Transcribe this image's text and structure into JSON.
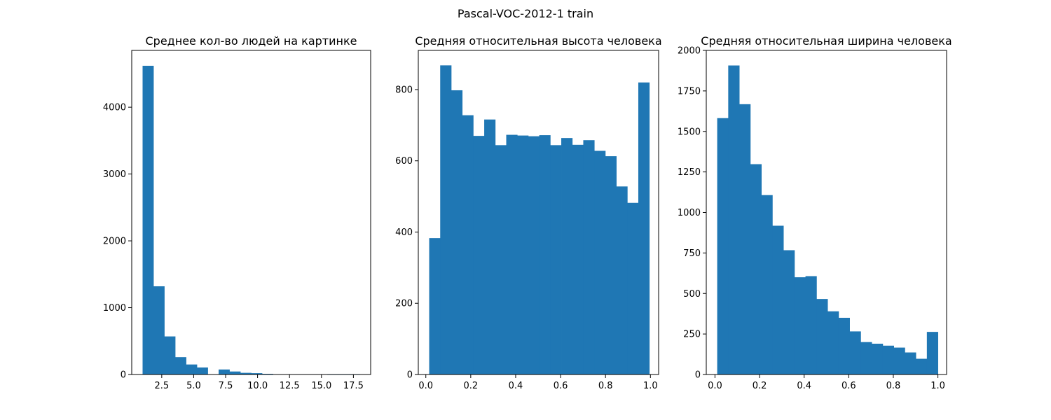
{
  "figure": {
    "suptitle": "Pascal-VOC-2012-1 train"
  },
  "chart_data": [
    {
      "type": "bar",
      "title": "Среднее кол-во людей на картинке",
      "bar_color": "#1f77b4",
      "xlim": [
        0.15,
        18.85
      ],
      "ylim": [
        0,
        4850
      ],
      "xticks": [
        2.5,
        5.0,
        7.5,
        10.0,
        12.5,
        15.0,
        17.5
      ],
      "xtick_labels": [
        "2.5",
        "5.0",
        "7.5",
        "10.0",
        "12.5",
        "15.0",
        "17.5"
      ],
      "yticks": [
        0,
        1000,
        2000,
        3000,
        4000
      ],
      "ytick_labels": [
        "0",
        "1000",
        "2000",
        "3000",
        "4000"
      ],
      "bin_edges": [
        1.0,
        1.85,
        2.7,
        3.55,
        4.4,
        5.25,
        6.1,
        6.95,
        7.8,
        8.65,
        9.5,
        10.35,
        11.2,
        12.05,
        12.9,
        13.75,
        14.6,
        15.45,
        16.3,
        17.15,
        18.0
      ],
      "counts": [
        4620,
        1320,
        570,
        260,
        150,
        105,
        0,
        75,
        45,
        25,
        20,
        10,
        0,
        5,
        3,
        3,
        3,
        2,
        2,
        2
      ]
    },
    {
      "type": "bar",
      "title": "Средняя относительная высота человека",
      "bar_color": "#1f77b4",
      "xlim": [
        -0.0335,
        1.0365
      ],
      "ylim": [
        0,
        910
      ],
      "xticks": [
        0.0,
        0.2,
        0.4,
        0.6,
        0.8,
        1.0
      ],
      "xtick_labels": [
        "0.0",
        "0.2",
        "0.4",
        "0.6",
        "0.8",
        "1.0"
      ],
      "yticks": [
        0,
        200,
        400,
        600,
        800
      ],
      "ytick_labels": [
        "0",
        "200",
        "400",
        "600",
        "800"
      ],
      "bin_edges": [
        0.015,
        0.064,
        0.113,
        0.162,
        0.211,
        0.26,
        0.309,
        0.358,
        0.407,
        0.456,
        0.505,
        0.554,
        0.603,
        0.652,
        0.701,
        0.75,
        0.799,
        0.848,
        0.897,
        0.946,
        0.995
      ],
      "counts": [
        383,
        868,
        798,
        728,
        670,
        716,
        644,
        673,
        671,
        669,
        672,
        644,
        664,
        645,
        658,
        628,
        613,
        528,
        482,
        820
      ]
    },
    {
      "type": "bar",
      "title": "Средняя относительная ширина человека",
      "bar_color": "#1f77b4",
      "xlim": [
        -0.039,
        1.039
      ],
      "ylim": [
        0,
        2000
      ],
      "xticks": [
        0.0,
        0.2,
        0.4,
        0.6,
        0.8,
        1.0
      ],
      "xtick_labels": [
        "0.0",
        "0.2",
        "0.4",
        "0.6",
        "0.8",
        "1.0"
      ],
      "yticks": [
        0,
        250,
        500,
        750,
        1000,
        1250,
        1500,
        1750,
        2000
      ],
      "ytick_labels": [
        "0",
        "250",
        "500",
        "750",
        "1000",
        "1250",
        "1500",
        "1750",
        "2000"
      ],
      "bin_edges": [
        0.01,
        0.0595,
        0.109,
        0.1585,
        0.208,
        0.2575,
        0.307,
        0.3565,
        0.406,
        0.4555,
        0.505,
        0.5545,
        0.604,
        0.6535,
        0.703,
        0.7525,
        0.802,
        0.8515,
        0.901,
        0.9505,
        1.0
      ],
      "counts": [
        1582,
        1907,
        1668,
        1298,
        1107,
        918,
        767,
        600,
        607,
        466,
        390,
        350,
        266,
        200,
        190,
        178,
        166,
        136,
        97,
        263
      ]
    }
  ]
}
